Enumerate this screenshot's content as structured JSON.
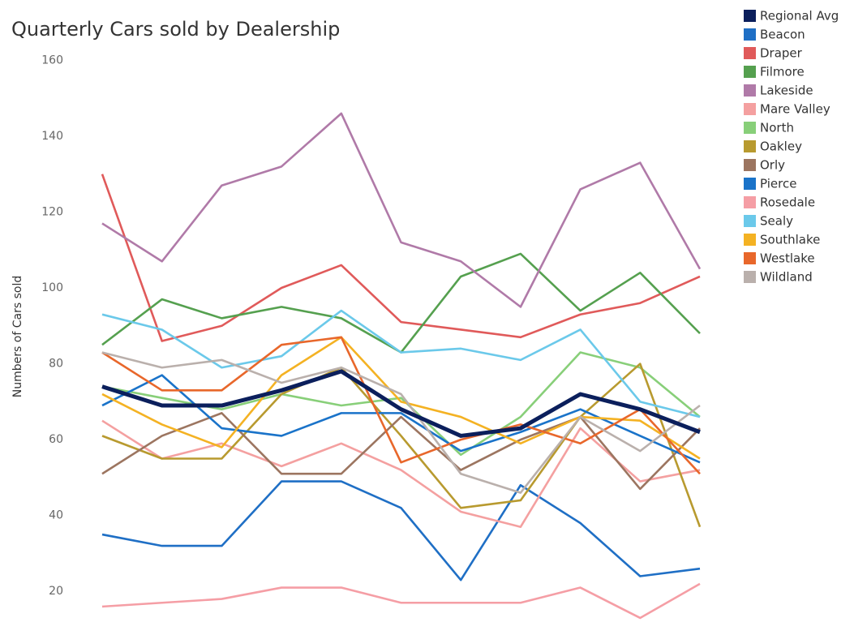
{
  "chart_data": {
    "type": "line",
    "title": "Quarterly Cars sold by Dealership",
    "ylabel": "Numbers of Cars sold",
    "categories": [
      null,
      null,
      null,
      null,
      null,
      null,
      null,
      null,
      null,
      null,
      null
    ],
    "ylim": [
      10,
      162
    ],
    "yticks": [
      20,
      40,
      60,
      80,
      100,
      120,
      140,
      160
    ],
    "grid": false,
    "legend": "right",
    "series": [
      {
        "name": "Regional Avg",
        "color": "#0b1f5c",
        "values": [
          74,
          69,
          69,
          73,
          78,
          68,
          61,
          63,
          72,
          68,
          62
        ]
      },
      {
        "name": "Beacon",
        "color": "#1f6fc5",
        "values": [
          35,
          32,
          32,
          49,
          49,
          42,
          23,
          48,
          38,
          24,
          26
        ]
      },
      {
        "name": "Draper",
        "color": "#e05a5a",
        "values": [
          130,
          86,
          90,
          100,
          106,
          91,
          89,
          87,
          93,
          96,
          103
        ]
      },
      {
        "name": "Filmore",
        "color": "#55a04f",
        "values": [
          85,
          97,
          92,
          95,
          92,
          83,
          103,
          109,
          94,
          104,
          88
        ]
      },
      {
        "name": "Lakeside",
        "color": "#b07aa8",
        "values": [
          117,
          107,
          127,
          132,
          146,
          112,
          107,
          95,
          126,
          133,
          105
        ]
      },
      {
        "name": "Mare Valley",
        "color": "#f4a0a0",
        "values": [
          65,
          55,
          59,
          53,
          59,
          52,
          41,
          37,
          63,
          49,
          52
        ]
      },
      {
        "name": "North",
        "color": "#88cf79",
        "values": [
          74,
          71,
          68,
          72,
          69,
          71,
          56,
          66,
          83,
          79,
          66
        ]
      },
      {
        "name": "Oakley",
        "color": "#b89a2f",
        "values": [
          61,
          55,
          55,
          72,
          79,
          61,
          42,
          44,
          66,
          80,
          37
        ]
      },
      {
        "name": "Orly",
        "color": "#9c7560",
        "values": [
          51,
          61,
          67,
          51,
          51,
          66,
          52,
          60,
          66,
          47,
          63
        ]
      },
      {
        "name": "Pierce",
        "color": "#1a73c9",
        "values": [
          69,
          77,
          63,
          61,
          67,
          67,
          57,
          62,
          68,
          61,
          54
        ]
      },
      {
        "name": "Rosedale",
        "color": "#f59ea5",
        "values": [
          16,
          17,
          18,
          21,
          21,
          17,
          17,
          17,
          21,
          13,
          22
        ]
      },
      {
        "name": "Sealy",
        "color": "#6bc9ea",
        "values": [
          93,
          89,
          79,
          82,
          94,
          83,
          84,
          81,
          89,
          70,
          66
        ]
      },
      {
        "name": "Southlake",
        "color": "#f4b223",
        "values": [
          72,
          64,
          58,
          77,
          87,
          70,
          66,
          59,
          66,
          65,
          55
        ]
      },
      {
        "name": "Westlake",
        "color": "#e8672b",
        "values": [
          83,
          73,
          73,
          85,
          87,
          54,
          60,
          64,
          59,
          68,
          51
        ]
      },
      {
        "name": "Wildland",
        "color": "#bab0ac",
        "values": [
          83,
          79,
          81,
          75,
          79,
          72,
          51,
          46,
          66,
          57,
          69
        ]
      }
    ]
  }
}
